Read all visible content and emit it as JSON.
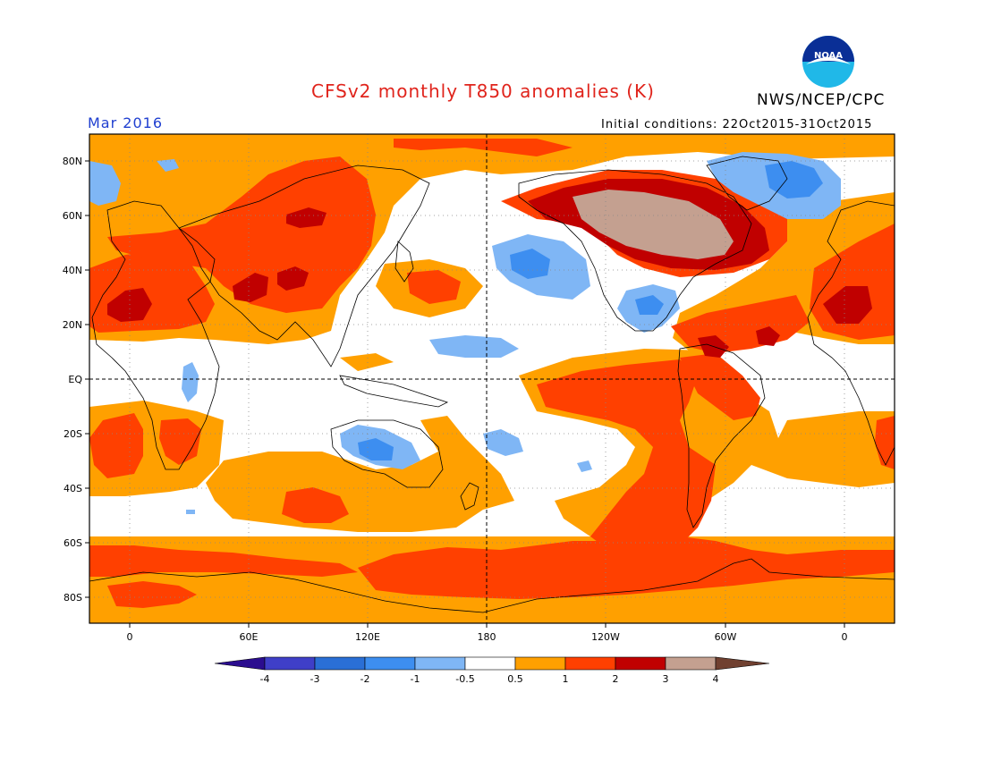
{
  "title": "CFSv2 monthly T850 anomalies (K)",
  "agency": "NWS/NCEP/CPC",
  "logo_text": "NOAA",
  "valid_period": "Mar 2016",
  "initial_conditions": "Initial conditions: 22Oct2015-31Oct2015",
  "lat_labels": [
    "80N",
    "60N",
    "40N",
    "20N",
    "EQ",
    "20S",
    "40S",
    "60S",
    "80S"
  ],
  "lon_labels": [
    "0",
    "60E",
    "120E",
    "180",
    "120W",
    "60W",
    "0"
  ],
  "colorbar": {
    "ticks": [
      "-4",
      "-3",
      "-2",
      "-1",
      "-0.5",
      "0.5",
      "1",
      "2",
      "3",
      "4"
    ],
    "colors": [
      "#2b0d8f",
      "#3f3fc8",
      "#2a6fd6",
      "#3d8ef0",
      "#7fb6f5",
      "#ffffff",
      "#ffa000",
      "#ff4000",
      "#c00000",
      "#c4a090",
      "#704030"
    ]
  },
  "colors": {
    "warm_1": "#ffa000",
    "warm_2": "#ff4000",
    "warm_3": "#c00000",
    "warm_4": "#c4a090",
    "cool_1": "#7fb6f5",
    "cool_2": "#3d8ef0",
    "title": "#e0241c",
    "period": "#1f3fd0"
  }
}
